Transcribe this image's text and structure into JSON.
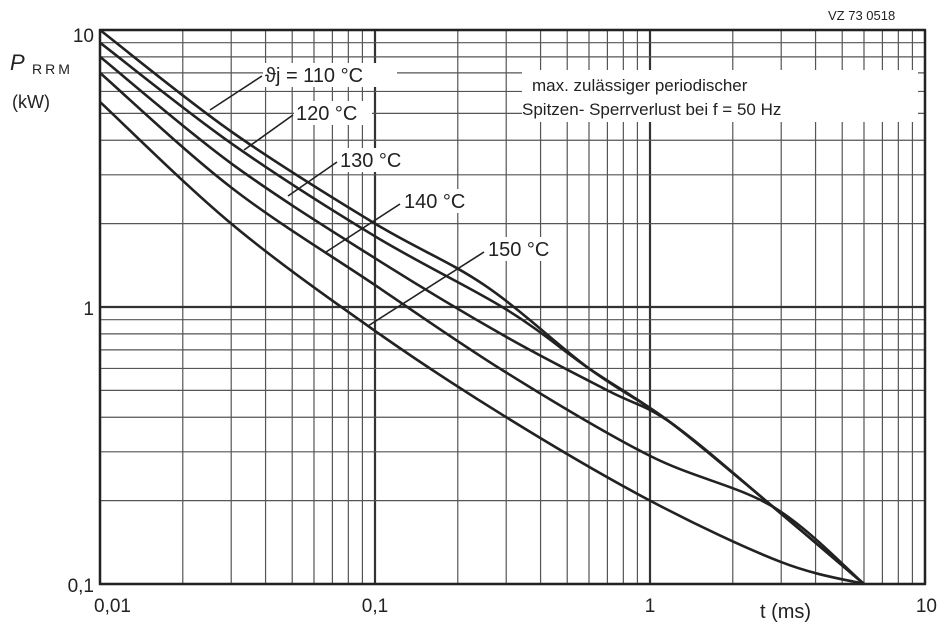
{
  "doc_id": "VZ 73 0518",
  "y_axis_title": "P",
  "y_axis_sub": "RRM",
  "y_axis_unit": "(kW)",
  "x_axis_label": "t (ms)",
  "note_line1": "max. zulässiger periodischer",
  "note_line2": "Spitzen- Sperrverlust bei f = 50 Hz",
  "chart_data": {
    "type": "line",
    "x_scale": "log",
    "y_scale": "log",
    "xlim": [
      0.01,
      10
    ],
    "ylim": [
      0.1,
      10
    ],
    "x_ticks": [
      {
        "v": 0.01,
        "label": "0,01"
      },
      {
        "v": 0.1,
        "label": "0,1"
      },
      {
        "v": 1,
        "label": "1"
      },
      {
        "v": 10,
        "label": "10"
      }
    ],
    "y_ticks": [
      {
        "v": 10,
        "label": "10"
      },
      {
        "v": 1,
        "label": "1"
      },
      {
        "v": 0.1,
        "label": "0,1"
      }
    ],
    "grid": true,
    "series": [
      {
        "name": "ϑj = 110 °C",
        "label_text": "ϑj = 110 °C",
        "points": [
          [
            0.01,
            10.0
          ],
          [
            0.03,
            4.3
          ],
          [
            0.1,
            2.0
          ],
          [
            0.25,
            1.2
          ],
          [
            0.6,
            0.6
          ],
          [
            1.2,
            0.38
          ],
          [
            2.8,
            0.19
          ],
          [
            6.0,
            0.1
          ]
        ]
      },
      {
        "name": "120 °C",
        "label_text": "120 °C",
        "points": [
          [
            0.01,
            9.0
          ],
          [
            0.03,
            3.9
          ],
          [
            0.1,
            1.8
          ],
          [
            0.3,
            0.98
          ],
          [
            0.6,
            0.6
          ],
          [
            1.2,
            0.38
          ],
          [
            2.8,
            0.19
          ],
          [
            6.0,
            0.1
          ]
        ]
      },
      {
        "name": "130 °C",
        "label_text": "130 °C",
        "points": [
          [
            0.01,
            8.0
          ],
          [
            0.03,
            3.3
          ],
          [
            0.1,
            1.5
          ],
          [
            0.3,
            0.78
          ],
          [
            0.7,
            0.5
          ],
          [
            1.2,
            0.38
          ],
          [
            2.8,
            0.19
          ],
          [
            6.0,
            0.1
          ]
        ]
      },
      {
        "name": "140 °C",
        "label_text": "140 °C",
        "points": [
          [
            0.01,
            7.0
          ],
          [
            0.03,
            2.7
          ],
          [
            0.1,
            1.2
          ],
          [
            0.3,
            0.58
          ],
          [
            1.0,
            0.29
          ],
          [
            2.8,
            0.19
          ],
          [
            6.0,
            0.1
          ]
        ]
      },
      {
        "name": "150 °C",
        "label_text": "150 °C",
        "points": [
          [
            0.01,
            5.5
          ],
          [
            0.03,
            2.0
          ],
          [
            0.1,
            0.82
          ],
          [
            0.3,
            0.4
          ],
          [
            1.0,
            0.2
          ],
          [
            3.0,
            0.12
          ],
          [
            6.0,
            0.1
          ]
        ]
      }
    ]
  }
}
